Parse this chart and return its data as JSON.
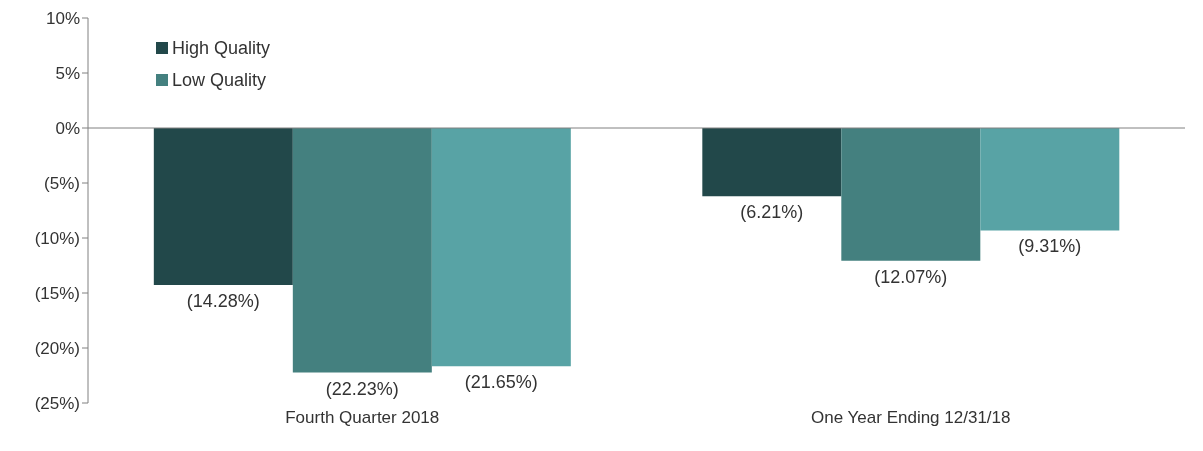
{
  "chart_data": {
    "type": "bar",
    "categories": [
      "Fourth Quarter 2018",
      "One Year Ending 12/31/18"
    ],
    "series": [
      {
        "name": "High Quality",
        "color": "#22484a",
        "values": [
          -14.28,
          -6.21
        ],
        "value_labels": [
          "(14.28%)",
          "(6.21%)"
        ]
      },
      {
        "name": "Low Quality",
        "color": "#44807f",
        "values": [
          -22.23,
          -12.07
        ],
        "value_labels": [
          "(22.23%)",
          "(12.07%)"
        ]
      },
      {
        "color": "#58a3a5",
        "values": [
          -21.65,
          -9.31
        ],
        "value_labels": [
          "(21.65%)",
          "(9.31%)"
        ]
      }
    ],
    "ylim": [
      -25,
      10
    ],
    "yticks": [
      {
        "value": 10,
        "label": "10%"
      },
      {
        "value": 5,
        "label": "5%"
      },
      {
        "value": 0,
        "label": "0%"
      },
      {
        "value": -5,
        "label": "(5%)"
      },
      {
        "value": -10,
        "label": "(10%)"
      },
      {
        "value": -15,
        "label": "(15%)"
      },
      {
        "value": -20,
        "label": "(20%)"
      },
      {
        "value": -25,
        "label": "(25%)"
      }
    ],
    "ref_lines": [
      {
        "axis": "y",
        "value": 0,
        "color": "#808080"
      }
    ],
    "legend": "top left",
    "grid": false
  }
}
